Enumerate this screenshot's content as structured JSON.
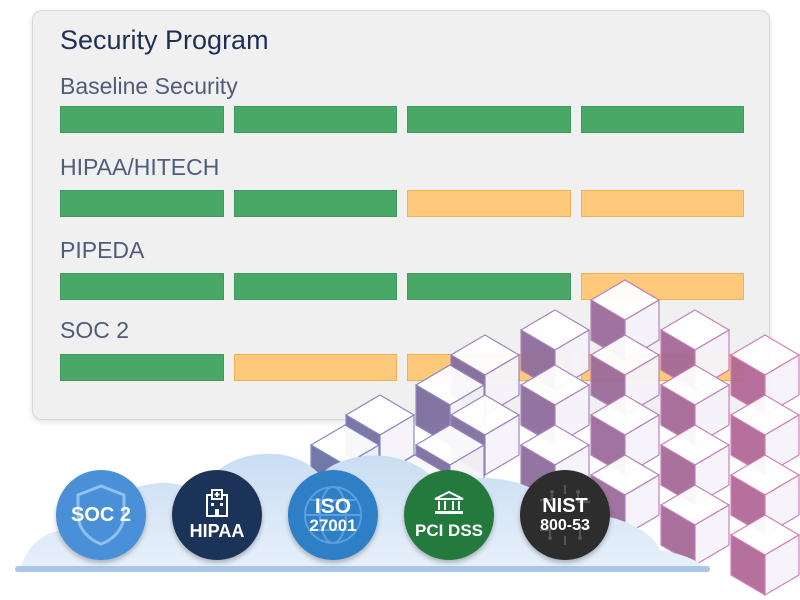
{
  "card": {
    "title": "Security Program",
    "programs": [
      {
        "label": "Baseline Security",
        "segments": [
          "done",
          "done",
          "done",
          "done"
        ]
      },
      {
        "label": "HIPAA/HITECH",
        "segments": [
          "done",
          "done",
          "partial",
          "partial"
        ]
      },
      {
        "label": "PIPEDA",
        "segments": [
          "done",
          "done",
          "done",
          "partial"
        ]
      },
      {
        "label": "SOC 2",
        "segments": [
          "done",
          "partial",
          "partial",
          "partial"
        ]
      }
    ]
  },
  "badges": {
    "soc2": {
      "label": "SOC 2",
      "color": "#4a90d9"
    },
    "hipaa": {
      "label": "HIPAA",
      "color": "#1b3358"
    },
    "iso": {
      "line1": "ISO",
      "line2": "27001",
      "color": "#2f7fc7"
    },
    "pci": {
      "label": "PCI DSS",
      "color": "#237a3c"
    },
    "nist": {
      "line1": "NIST",
      "line2": "800-53",
      "color": "#2d2d2d"
    }
  },
  "colors": {
    "done": "#4aa866",
    "partial": "#fec97a",
    "cube_blue": "#7c86c0",
    "cube_pink": "#d47bb0"
  }
}
